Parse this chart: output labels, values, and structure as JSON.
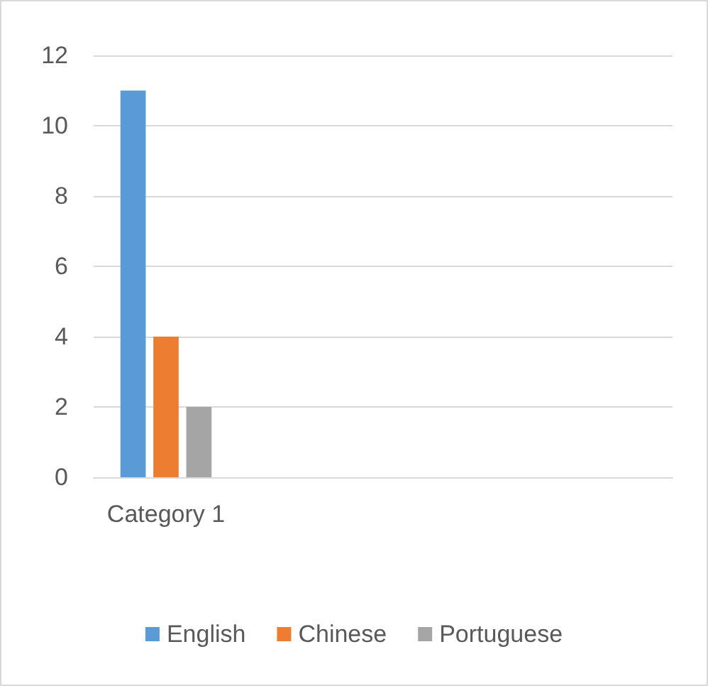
{
  "chart_data": {
    "type": "bar",
    "categories": [
      "Category 1",
      null,
      null,
      null
    ],
    "series": [
      {
        "name": "English",
        "color": "#5b9bd5",
        "values": [
          11,
          null,
          null,
          null
        ]
      },
      {
        "name": "Chinese",
        "color": "#ed7d31",
        "values": [
          4,
          null,
          null,
          null
        ]
      },
      {
        "name": "Portuguese",
        "color": "#a5a5a5",
        "values": [
          2,
          null,
          null,
          null
        ]
      }
    ],
    "ylim": [
      0,
      12
    ],
    "yticks": [
      0,
      2,
      4,
      6,
      8,
      10,
      12
    ],
    "grid": "y",
    "legend": "bottom"
  }
}
